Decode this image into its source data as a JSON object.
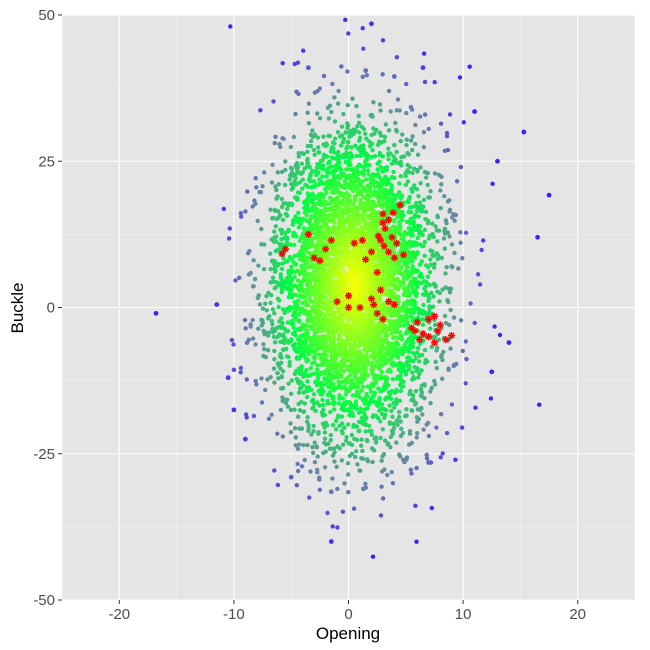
{
  "chart_data": {
    "type": "scatter",
    "title": "",
    "xlabel": "Opening",
    "ylabel": "Buckle",
    "xlim": [
      -25,
      25
    ],
    "ylim": [
      -50,
      50
    ],
    "x_ticks": [
      -20,
      -10,
      0,
      10,
      20
    ],
    "y_ticks": [
      50,
      25,
      0,
      -25,
      -50
    ],
    "grid": true,
    "legend": "none",
    "background_color": "#e5e5e5",
    "grid_color": "#ffffff",
    "color_scale": [
      "#ffff00",
      "#00ff40",
      "#6a8aa0",
      "#4020ff"
    ],
    "highlight_color": "#ff0000",
    "bulk_cloud": {
      "x_mean": 0.5,
      "x_sd": 3.5,
      "y_mean": 4,
      "y_sd": 13,
      "n_points": 5200,
      "sample_seed": 11
    },
    "notable_points": [
      {
        "x": 2.0,
        "y": 48.5
      },
      {
        "x": -16.8,
        "y": -1.0
      },
      {
        "x": -1.5,
        "y": -40.0
      },
      {
        "x": -1.5,
        "y": -31.5
      },
      {
        "x": 6.5,
        "y": 41.0
      },
      {
        "x": -3.5,
        "y": 41.0
      },
      {
        "x": 1.5,
        "y": 40.5
      },
      {
        "x": 4.0,
        "y": 39.5
      },
      {
        "x": 15.3,
        "y": 30.0
      },
      {
        "x": 17.5,
        "y": 19.2
      },
      {
        "x": 16.5,
        "y": 12.0
      },
      {
        "x": 14.0,
        "y": -6.0
      },
      {
        "x": 12.5,
        "y": -11.0
      },
      {
        "x": -11.5,
        "y": 0.5
      },
      {
        "x": -10.0,
        "y": -17.5
      },
      {
        "x": -9.0,
        "y": -22.5
      },
      {
        "x": -5.0,
        "y": -29.0
      },
      {
        "x": 7.0,
        "y": -26.5
      },
      {
        "x": 1.3,
        "y": -31.0
      },
      {
        "x": 11.0,
        "y": 33.5
      },
      {
        "x": 13.0,
        "y": 25.0
      },
      {
        "x": -10.5,
        "y": -12.0
      }
    ],
    "highlighted": [
      {
        "x": 3.0,
        "y": 16.0
      },
      {
        "x": 3.5,
        "y": 15.0
      },
      {
        "x": 4.5,
        "y": 17.5
      },
      {
        "x": 3.2,
        "y": 13.5
      },
      {
        "x": 3.8,
        "y": 12.0
      },
      {
        "x": 2.8,
        "y": 11.5
      },
      {
        "x": 3.5,
        "y": 9.5
      },
      {
        "x": 4.0,
        "y": 8.5
      },
      {
        "x": 4.8,
        "y": 9.0
      },
      {
        "x": 3.0,
        "y": 14.5
      },
      {
        "x": 3.9,
        "y": 16.2
      },
      {
        "x": 2.6,
        "y": 12.2
      },
      {
        "x": 4.2,
        "y": 11.0
      },
      {
        "x": 3.1,
        "y": 10.5
      },
      {
        "x": -5.5,
        "y": 10.0
      },
      {
        "x": -5.8,
        "y": 9.2
      },
      {
        "x": -3.5,
        "y": 12.5
      },
      {
        "x": -2.0,
        "y": 10.0
      },
      {
        "x": -2.5,
        "y": 8.0
      },
      {
        "x": -1.5,
        "y": 11.5
      },
      {
        "x": -3.0,
        "y": 8.5
      },
      {
        "x": 0.5,
        "y": 11.0
      },
      {
        "x": 1.2,
        "y": 11.5
      },
      {
        "x": 2.0,
        "y": 9.5
      },
      {
        "x": 1.5,
        "y": 8.2
      },
      {
        "x": 2.5,
        "y": 6.0
      },
      {
        "x": 2.8,
        "y": 3.0
      },
      {
        "x": 2.0,
        "y": 1.5
      },
      {
        "x": 2.2,
        "y": 0.5
      },
      {
        "x": 0.0,
        "y": 2.0
      },
      {
        "x": -1.0,
        "y": 1.0
      },
      {
        "x": 0.0,
        "y": 0.0
      },
      {
        "x": 1.0,
        "y": 0.0
      },
      {
        "x": 3.5,
        "y": 1.0
      },
      {
        "x": 2.5,
        "y": -1.0
      },
      {
        "x": 3.0,
        "y": -2.0
      },
      {
        "x": 4.0,
        "y": 0.5
      },
      {
        "x": 6.0,
        "y": -2.5
      },
      {
        "x": 7.0,
        "y": -2.0
      },
      {
        "x": 7.5,
        "y": -1.5
      },
      {
        "x": 5.8,
        "y": -4.0
      },
      {
        "x": 6.5,
        "y": -4.5
      },
      {
        "x": 7.0,
        "y": -5.0
      },
      {
        "x": 7.8,
        "y": -4.0
      },
      {
        "x": 8.5,
        "y": -5.5
      },
      {
        "x": 9.0,
        "y": -4.8
      },
      {
        "x": 6.2,
        "y": -5.5
      },
      {
        "x": 7.5,
        "y": -6.0
      },
      {
        "x": 8.0,
        "y": -3.0
      },
      {
        "x": 5.5,
        "y": -3.5
      }
    ]
  }
}
